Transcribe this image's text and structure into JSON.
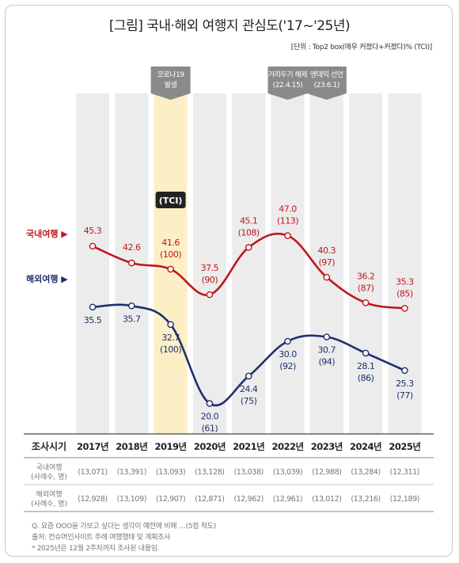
{
  "title": "[그림] 국내·해외 여행지 관심도('17~'25년)",
  "unit_note": "[단위 : Top2 box(매우 커졌다+커졌다)% (TCI)]",
  "tci_label": "(TCI)",
  "colors": {
    "domestic": "#c0161d",
    "overseas": "#1d2f6e",
    "highlight": "#fcefc5",
    "band": "#ececec",
    "tag": "#8a8a8a"
  },
  "events": [
    {
      "year": "2019년",
      "lines": [
        "코로나19",
        "발생"
      ]
    },
    {
      "year": "2022년",
      "lines": [
        "거리두기 해제",
        "(22.4.15)"
      ]
    },
    {
      "year": "2023년",
      "lines": [
        "엔데믹 선언",
        "(23.6.1)"
      ]
    }
  ],
  "table": {
    "header_label": "조사시기",
    "row1_label": [
      "국내여행",
      "(사례수, 명)"
    ],
    "row2_label": [
      "해외여행",
      "(사례수, 명)"
    ],
    "domestic_n": [
      "(13,071)",
      "(13,391)",
      "(13,093)",
      "(13,128)",
      "(13,038)",
      "(13,039)",
      "(12,988)",
      "(13,284)",
      "(12,311)"
    ],
    "overseas_n": [
      "(12,928)",
      "(13,109)",
      "(12,907)",
      "(12,871)",
      "(12,962)",
      "(12,961)",
      "(13,012)",
      "(13,216)",
      "(12,189)"
    ]
  },
  "notes": [
    "Q. 요즘 OOO을 가보고 싶다는 생각이 예전에 비해 …(5점 척도)",
    "출처: 컨슈머인사이트 주례 여행행태 및 계획조사",
    "* 2025년은 12월 2주차까지 조사된 내용임."
  ],
  "chart_data": {
    "type": "line",
    "categories": [
      "2017년",
      "2018년",
      "2019년",
      "2020년",
      "2021년",
      "2022년",
      "2023년",
      "2024년",
      "2025년"
    ],
    "highlight_category": "2019년",
    "series": [
      {
        "name": "국내여행",
        "values": [
          45.3,
          42.6,
          41.6,
          37.5,
          45.1,
          47.0,
          40.3,
          36.2,
          35.3
        ],
        "tci": [
          null,
          null,
          100,
          90,
          108,
          113,
          97,
          87,
          85
        ],
        "labels": [
          "45.3",
          "42.6",
          "41.6",
          "37.5",
          "45.1",
          "47.0",
          "40.3",
          "36.2",
          "35.3"
        ],
        "tci_labels": [
          "",
          "",
          "(100)",
          "(90)",
          "(108)",
          "(113)",
          "(97)",
          "(87)",
          "(85)"
        ]
      },
      {
        "name": "해외여행",
        "values": [
          35.5,
          35.7,
          32.7,
          20.0,
          24.4,
          30.0,
          30.7,
          28.1,
          25.3
        ],
        "tci": [
          null,
          null,
          100,
          61,
          75,
          92,
          94,
          86,
          77
        ],
        "labels": [
          "35.5",
          "35.7",
          "32.7",
          "20.0",
          "24.4",
          "30.0",
          "30.7",
          "28.1",
          "25.3"
        ],
        "tci_labels": [
          "",
          "",
          "(100)",
          "(61)",
          "(75)",
          "(92)",
          "(94)",
          "(86)",
          "(77)"
        ]
      }
    ]
  }
}
